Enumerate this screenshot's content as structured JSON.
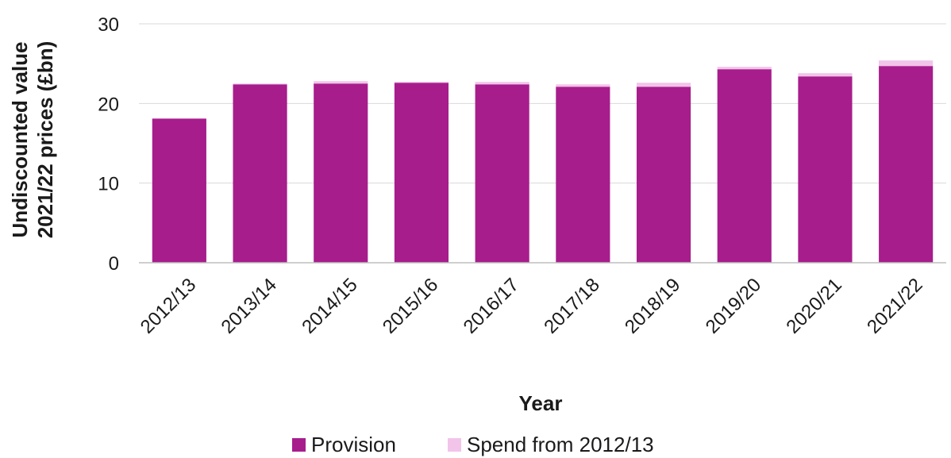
{
  "chart_data": {
    "type": "bar",
    "stacked": true,
    "categories": [
      "2012/13",
      "2013/14",
      "2014/15",
      "2015/16",
      "2016/17",
      "2017/18",
      "2018/19",
      "2019/20",
      "2020/21",
      "2021/22"
    ],
    "series": [
      {
        "name": "Provision",
        "color": "#a71d8c",
        "values": [
          18.1,
          22.4,
          22.5,
          22.6,
          22.4,
          22.1,
          22.1,
          24.3,
          23.4,
          24.7
        ]
      },
      {
        "name": "Spend from 2012/13",
        "color": "#f2c4ea",
        "values": [
          0,
          0.1,
          0.3,
          0.1,
          0.3,
          0.3,
          0.5,
          0.3,
          0.4,
          0.7
        ]
      }
    ],
    "xlabel": "Year",
    "ylabel_lines": [
      "Undiscounted value",
      "2021/22 prices (£bn)"
    ],
    "ylim": [
      0,
      30
    ],
    "yticks": [
      "0",
      "10",
      "20",
      "30"
    ],
    "grid": true,
    "legend_position": "bottom"
  }
}
